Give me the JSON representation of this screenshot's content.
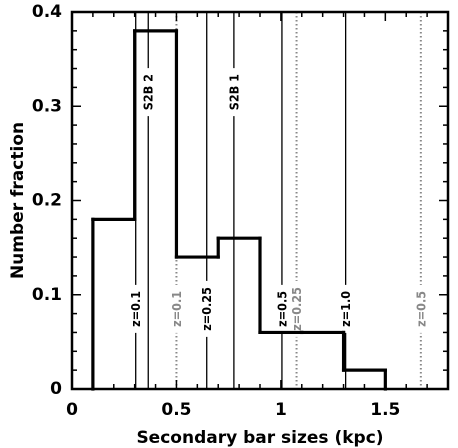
{
  "chart_data": {
    "type": "histogram",
    "title": "",
    "xlabel": "Secondary bar sizes (kpc)",
    "ylabel": "Number fraction",
    "xlim": [
      0,
      1.8
    ],
    "ylim": [
      0,
      0.4
    ],
    "xticks": [
      "0",
      "0.5",
      "1",
      "1.5"
    ],
    "xtick_values": [
      0,
      0.5,
      1,
      1.5
    ],
    "yticks": [
      "0",
      "0.1",
      "0.2",
      "0.3",
      "0.4"
    ],
    "ytick_values": [
      0,
      0.1,
      0.2,
      0.3,
      0.4
    ],
    "bins": [
      {
        "x0": 0.1,
        "x1": 0.3,
        "value": 0.18
      },
      {
        "x0": 0.3,
        "x1": 0.5,
        "value": 0.38
      },
      {
        "x0": 0.5,
        "x1": 0.7,
        "value": 0.14
      },
      {
        "x0": 0.7,
        "x1": 0.9,
        "value": 0.16
      },
      {
        "x0": 0.9,
        "x1": 1.1,
        "value": 0.06
      },
      {
        "x0": 1.1,
        "x1": 1.3,
        "value": 0.06
      },
      {
        "x0": 1.3,
        "x1": 1.5,
        "value": 0.02
      }
    ],
    "reference_lines": [
      {
        "x": 0.305,
        "label": "z=0.1",
        "style": "solid",
        "color": "#000000"
      },
      {
        "x": 0.365,
        "label": "S2B 2",
        "style": "solid",
        "color": "#000000"
      },
      {
        "x": 0.5,
        "label": "z=0.1",
        "style": "dotted",
        "color": "#888888"
      },
      {
        "x": 0.645,
        "label": "z=0.25",
        "style": "solid",
        "color": "#000000"
      },
      {
        "x": 0.775,
        "label": "S2B 1",
        "style": "solid",
        "color": "#000000"
      },
      {
        "x": 1.005,
        "label": "z=0.5",
        "style": "solid",
        "color": "#000000"
      },
      {
        "x": 1.075,
        "label": "z=0.25",
        "style": "dotted",
        "color": "#888888"
      },
      {
        "x": 1.31,
        "label": "z=1.0",
        "style": "solid",
        "color": "#000000"
      },
      {
        "x": 1.67,
        "label": "z=0.5",
        "style": "dotted",
        "color": "#888888"
      }
    ]
  }
}
